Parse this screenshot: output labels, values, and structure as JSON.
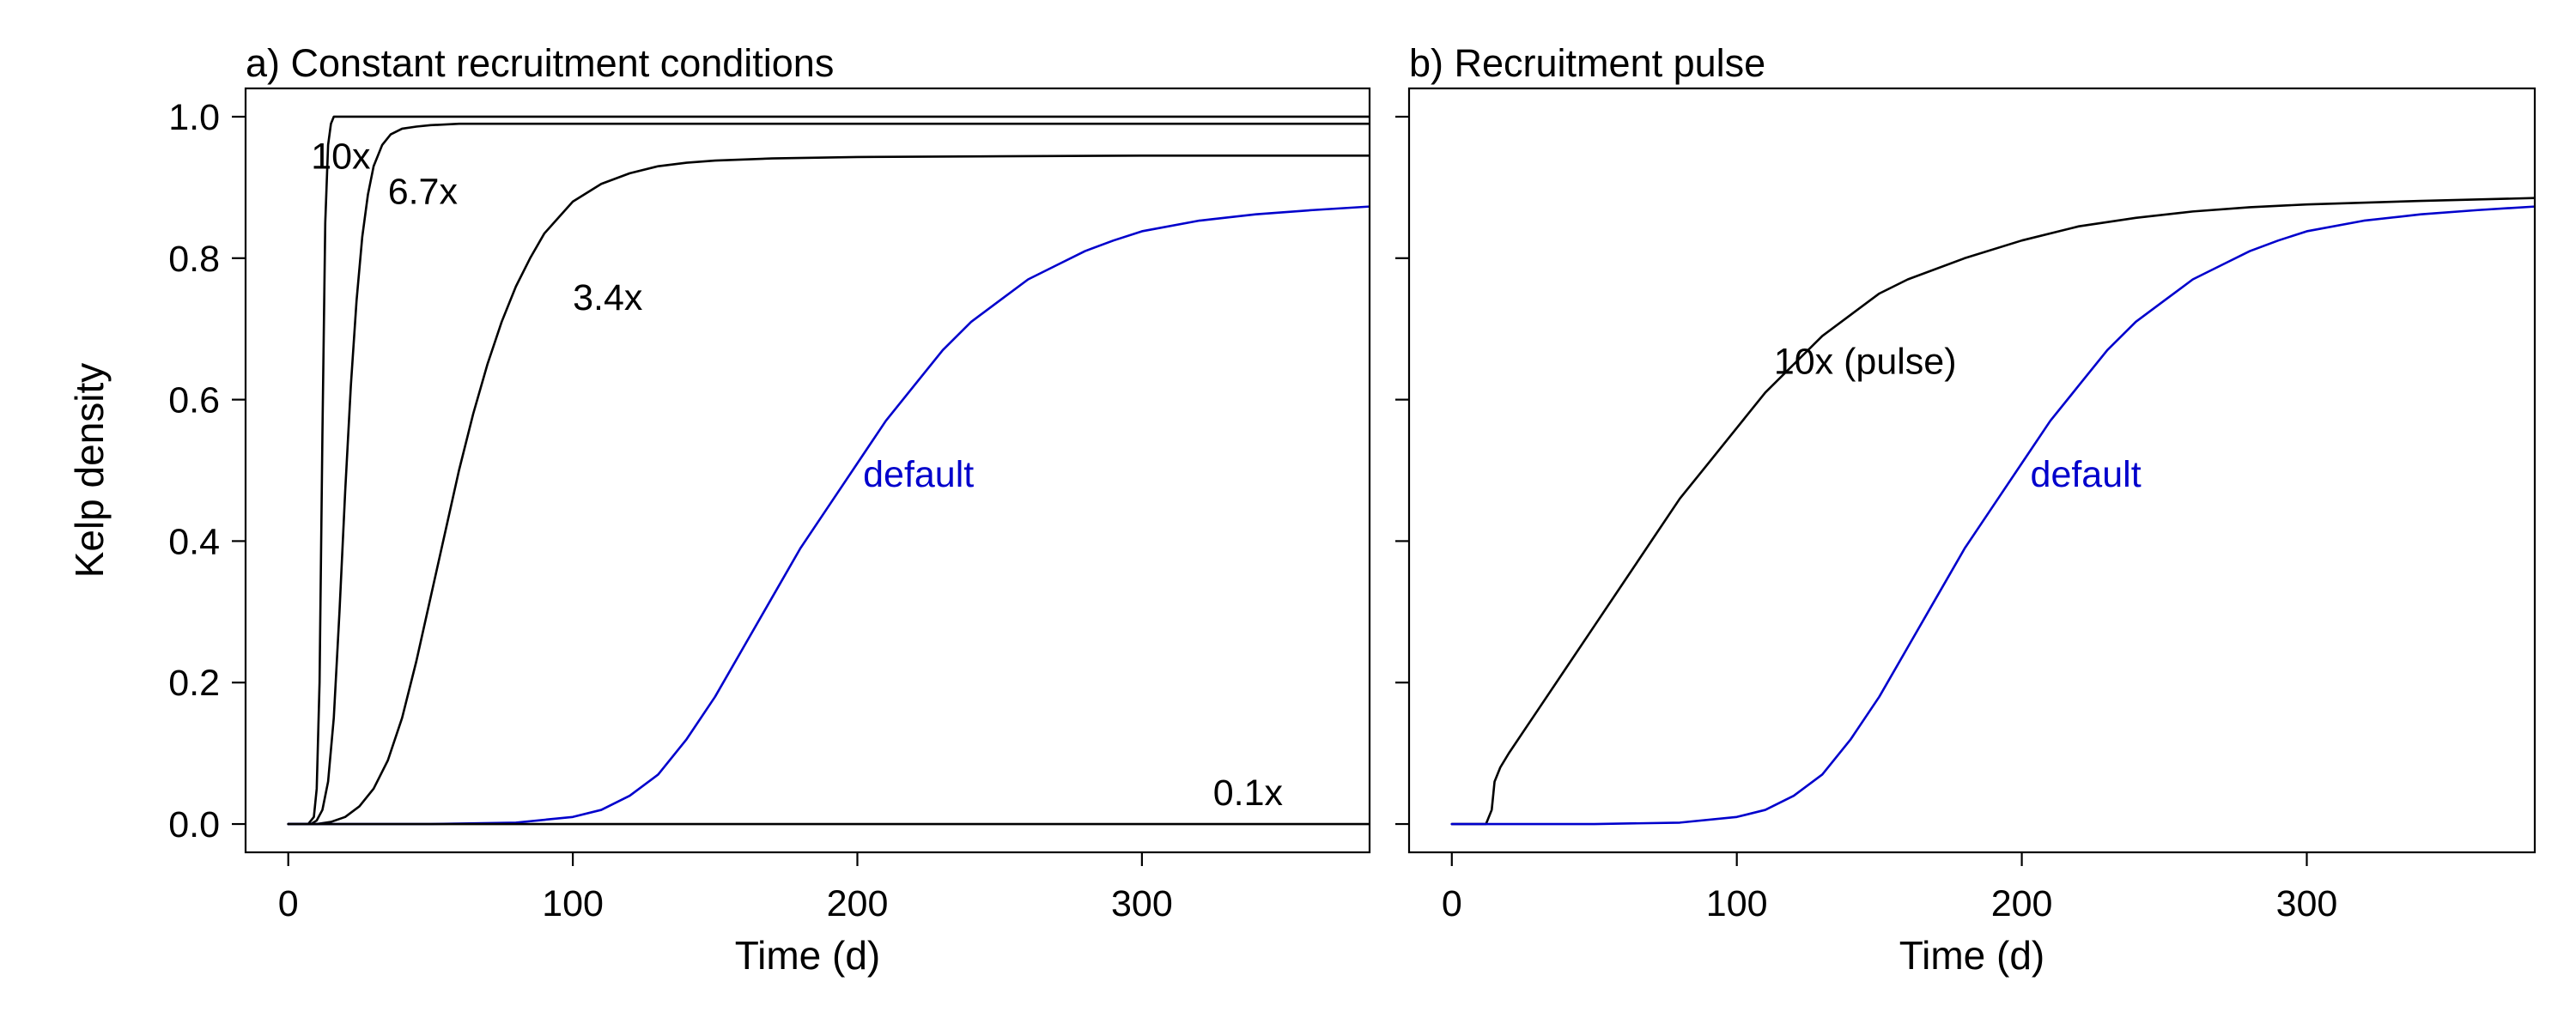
{
  "colors": {
    "default": "#0000cc",
    "other": "#000000"
  },
  "chart_data": [
    {
      "type": "line",
      "title": "a) Constant recruitment conditions",
      "xlabel": "Time (d)",
      "ylabel": "Kelp density",
      "xlim": [
        -15,
        380
      ],
      "ylim": [
        -0.04,
        1.04
      ],
      "xticks": [
        0,
        100,
        200,
        300
      ],
      "yticks": [
        0.0,
        0.2,
        0.4,
        0.6,
        0.8,
        1.0
      ],
      "grid": false,
      "series": [
        {
          "name": "10x",
          "color": "#000000",
          "x": [
            0,
            7,
            9,
            10,
            11,
            12,
            13,
            14,
            15,
            16,
            18,
            20,
            25,
            30,
            50,
            100,
            200,
            300,
            380
          ],
          "y": [
            0,
            0,
            0.01,
            0.05,
            0.2,
            0.55,
            0.85,
            0.96,
            0.99,
            1.0,
            1.0,
            1.0,
            1.0,
            1.0,
            1.0,
            1.0,
            1.0,
            1.0,
            1.0
          ],
          "label": "10x",
          "label_x": 8,
          "label_y": 0.945
        },
        {
          "name": "6.7x",
          "color": "#000000",
          "x": [
            0,
            8,
            10,
            12,
            14,
            16,
            18,
            20,
            22,
            24,
            26,
            28,
            30,
            33,
            36,
            40,
            45,
            50,
            60,
            80,
            100,
            200,
            300,
            380
          ],
          "y": [
            0,
            0,
            0.005,
            0.02,
            0.06,
            0.15,
            0.3,
            0.47,
            0.62,
            0.74,
            0.83,
            0.89,
            0.93,
            0.96,
            0.975,
            0.983,
            0.986,
            0.988,
            0.99,
            0.99,
            0.99,
            0.99,
            0.99,
            0.99
          ],
          "label": "6.7x",
          "label_x": 35,
          "label_y": 0.895
        },
        {
          "name": "3.4x",
          "color": "#000000",
          "x": [
            0,
            10,
            15,
            20,
            25,
            30,
            35,
            40,
            45,
            50,
            55,
            60,
            65,
            70,
            75,
            80,
            85,
            90,
            100,
            110,
            120,
            130,
            140,
            150,
            170,
            200,
            250,
            300,
            380
          ],
          "y": [
            0,
            0,
            0.003,
            0.01,
            0.025,
            0.05,
            0.09,
            0.15,
            0.23,
            0.32,
            0.41,
            0.5,
            0.58,
            0.65,
            0.71,
            0.76,
            0.8,
            0.835,
            0.88,
            0.905,
            0.92,
            0.93,
            0.935,
            0.938,
            0.941,
            0.943,
            0.944,
            0.945,
            0.945
          ],
          "label": "3.4x",
          "label_x": 100,
          "label_y": 0.745
        },
        {
          "name": "default",
          "color": "#0000cc",
          "x": [
            0,
            50,
            80,
            100,
            110,
            120,
            130,
            140,
            150,
            160,
            170,
            180,
            190,
            200,
            210,
            220,
            230,
            240,
            250,
            260,
            270,
            280,
            290,
            300,
            320,
            340,
            360,
            380
          ],
          "y": [
            0,
            0,
            0.002,
            0.01,
            0.02,
            0.04,
            0.07,
            0.12,
            0.18,
            0.25,
            0.32,
            0.39,
            0.45,
            0.51,
            0.57,
            0.62,
            0.67,
            0.71,
            0.74,
            0.77,
            0.79,
            0.81,
            0.825,
            0.838,
            0.853,
            0.862,
            0.868,
            0.873
          ],
          "label": "default",
          "label_x": 202,
          "label_y": 0.495
        },
        {
          "name": "0.1x",
          "color": "#000000",
          "x": [
            0,
            380
          ],
          "y": [
            0,
            0
          ],
          "label": "0.1x",
          "label_x": 325,
          "label_y": 0.045
        }
      ]
    },
    {
      "type": "line",
      "title": "b) Recruitment pulse",
      "xlabel": "Time (d)",
      "ylabel": "",
      "xlim": [
        -15,
        380
      ],
      "ylim": [
        -0.04,
        1.04
      ],
      "xticks": [
        0,
        100,
        200,
        300
      ],
      "yticks": [
        0.0,
        0.2,
        0.4,
        0.6,
        0.8,
        1.0
      ],
      "grid": false,
      "series": [
        {
          "name": "10x (pulse)",
          "color": "#000000",
          "x": [
            0,
            12,
            14,
            15,
            17,
            20,
            30,
            40,
            50,
            60,
            70,
            80,
            90,
            100,
            110,
            120,
            130,
            140,
            150,
            160,
            180,
            200,
            220,
            240,
            260,
            280,
            300,
            340,
            380
          ],
          "y": [
            0,
            0,
            0.02,
            0.06,
            0.08,
            0.1,
            0.16,
            0.22,
            0.28,
            0.34,
            0.4,
            0.46,
            0.51,
            0.56,
            0.61,
            0.65,
            0.69,
            0.72,
            0.75,
            0.77,
            0.8,
            0.825,
            0.845,
            0.857,
            0.866,
            0.872,
            0.876,
            0.881,
            0.885
          ],
          "label": "10x (pulse)",
          "label_x": 113,
          "label_y": 0.655
        },
        {
          "name": "default",
          "color": "#0000cc",
          "x": [
            0,
            50,
            80,
            100,
            110,
            120,
            130,
            140,
            150,
            160,
            170,
            180,
            190,
            200,
            210,
            220,
            230,
            240,
            250,
            260,
            270,
            280,
            290,
            300,
            320,
            340,
            360,
            380
          ],
          "y": [
            0,
            0,
            0.002,
            0.01,
            0.02,
            0.04,
            0.07,
            0.12,
            0.18,
            0.25,
            0.32,
            0.39,
            0.45,
            0.51,
            0.57,
            0.62,
            0.67,
            0.71,
            0.74,
            0.77,
            0.79,
            0.81,
            0.825,
            0.838,
            0.853,
            0.862,
            0.868,
            0.873
          ],
          "label": "default",
          "label_x": 203,
          "label_y": 0.495
        }
      ]
    }
  ]
}
